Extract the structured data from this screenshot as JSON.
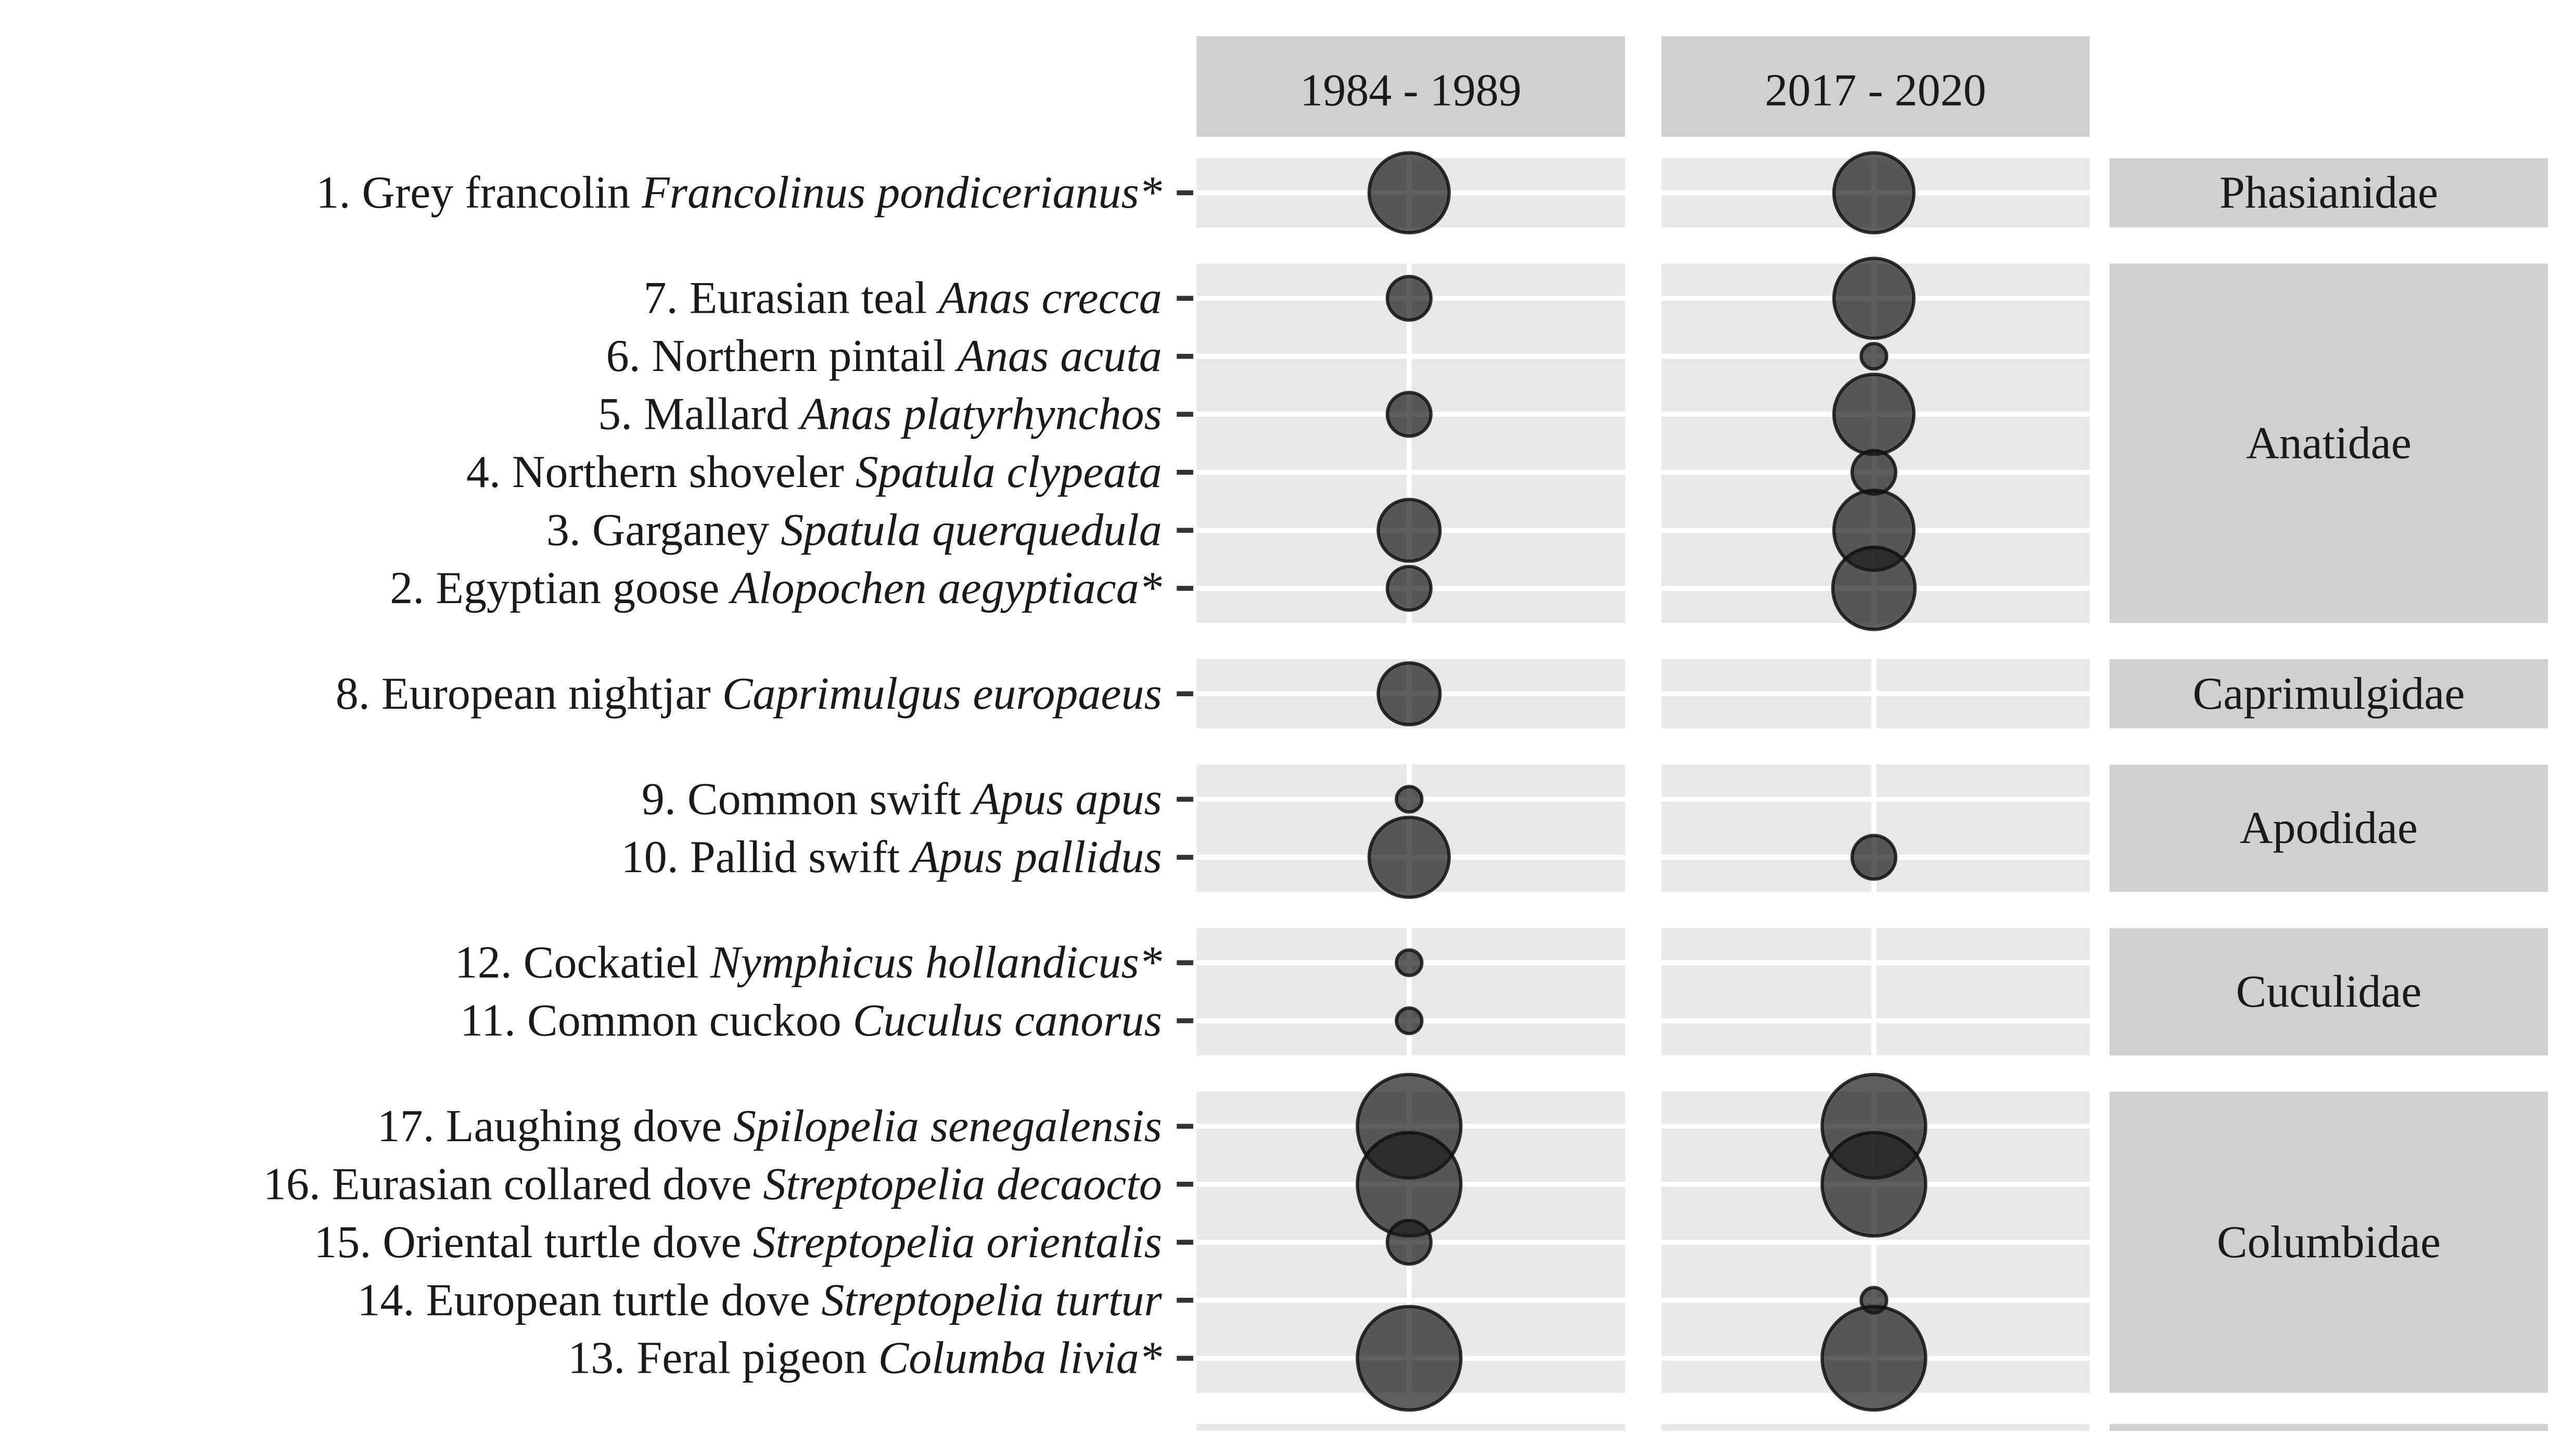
{
  "chart_data": {
    "type": "scatter",
    "encoding": "bubble",
    "periods": [
      "1984 - 1989",
      "2017 - 2020"
    ],
    "groups": [
      {
        "family": "Phasianidae",
        "species": [
          {
            "num": "1.",
            "common": "Grey francolin",
            "latin": "Francolinus pondicerianus",
            "mark": "*",
            "values": [
              8,
              8
            ]
          }
        ]
      },
      {
        "family": "Anatidae",
        "species": [
          {
            "num": "7.",
            "common": "Eurasian teal",
            "latin": "Anas crecca",
            "mark": "",
            "values": [
              2,
              8
            ]
          },
          {
            "num": "6.",
            "common": "Northern pintail",
            "latin": "Anas acuta",
            "mark": "",
            "values": [
              0,
              0.5
            ]
          },
          {
            "num": "5.",
            "common": "Mallard",
            "latin": "Anas platyrhynchos",
            "mark": "",
            "values": [
              2,
              8
            ]
          },
          {
            "num": "4.",
            "common": "Northern shoveler",
            "latin": "Spatula clypeata",
            "mark": "",
            "values": [
              0,
              2
            ]
          },
          {
            "num": "3.",
            "common": "Garganey",
            "latin": "Spatula querquedula",
            "mark": "",
            "values": [
              4.5,
              8
            ]
          },
          {
            "num": "2.",
            "common": "Egyptian goose",
            "latin": "Alopochen aegyptiaca",
            "mark": "*",
            "values": [
              2,
              8.5
            ]
          }
        ]
      },
      {
        "family": "Caprimulgidae",
        "species": [
          {
            "num": "8.",
            "common": "European nightjar",
            "latin": "Caprimulgus europaeus",
            "mark": "",
            "values": [
              4.5,
              0
            ]
          }
        ]
      },
      {
        "family": "Apodidae",
        "species": [
          {
            "num": "9.",
            "common": "Common swift",
            "latin": "Apus apus",
            "mark": "",
            "values": [
              0.5,
              0
            ]
          },
          {
            "num": "10.",
            "common": "Pallid swift",
            "latin": "Apus pallidus",
            "mark": "",
            "values": [
              8,
              2
            ]
          }
        ]
      },
      {
        "family": "Cuculidae",
        "species": [
          {
            "num": "12.",
            "common": "Cockatiel",
            "latin": "Nymphicus hollandicus",
            "mark": "*",
            "values": [
              0.5,
              0
            ]
          },
          {
            "num": "11.",
            "common": "Common cuckoo",
            "latin": "Cuculus canorus",
            "mark": "",
            "values": [
              0.5,
              0
            ]
          }
        ]
      },
      {
        "family": "Columbidae",
        "species": [
          {
            "num": "17.",
            "common": "Laughing dove",
            "latin": "Spilopelia senegalensis",
            "mark": "",
            "values": [
              14,
              14
            ]
          },
          {
            "num": "16.",
            "common": "Eurasian collared dove",
            "latin": "Streptopelia decaocto",
            "mark": "",
            "values": [
              14,
              14
            ]
          },
          {
            "num": "15.",
            "common": "Oriental turtle dove",
            "latin": "Streptopelia orientalis",
            "mark": "",
            "values": [
              2,
              0
            ]
          },
          {
            "num": "14.",
            "common": "European turtle dove",
            "latin": "Streptopelia turtur",
            "mark": "",
            "values": [
              0,
              0.5
            ]
          },
          {
            "num": "13.",
            "common": "Feral pigeon",
            "latin": "Columba livia",
            "mark": "*",
            "values": [
              14,
              14
            ]
          }
        ]
      }
    ],
    "point_color": "#1a1a1a",
    "point_opacity": 0.7,
    "panel_background": "#e8e8e8",
    "strip_background": "#d0d0d0",
    "grid": true
  }
}
